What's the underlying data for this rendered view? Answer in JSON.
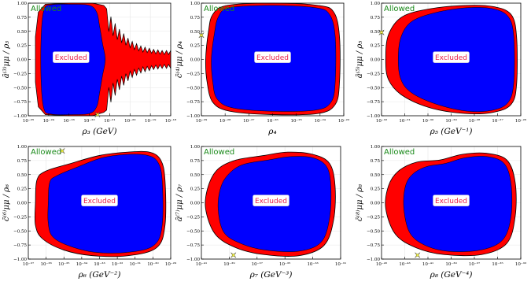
{
  "colors": {
    "excluded_inner": "#0000ff",
    "excluded_outer": "#ff0000",
    "marker": "#ffff33",
    "allowed_text": "#1a8a1a",
    "excluded_text": "#e8204a"
  },
  "region_labels": {
    "allowed": "Allowed",
    "excluded": "Excluded"
  },
  "chart_data": [
    {
      "type": "region",
      "xscale": "log",
      "xlabel": "ρ₃ (GeV)",
      "ylabel": "ȃ⁽³⁾μμ / ρ₃",
      "xlim_exp": [
        -25,
        -18
      ],
      "xtick_labels": [
        "10⁻²⁵",
        "10⁻²⁴",
        "10⁻²³",
        "10⁻²²",
        "10⁻²¹",
        "10⁻²⁰",
        "10⁻¹⁹",
        "10⁻¹⁸"
      ],
      "ylim": [
        -1.0,
        1.0
      ],
      "ytick_labels": [
        "1.00",
        "0.75",
        "0.50",
        "0.25",
        "0.00",
        "−0.25",
        "−0.50",
        "−0.75",
        "−1.00"
      ],
      "grid": true,
      "markers": [
        {
          "x_exp": -21.6,
          "y": -0.98
        }
      ]
    },
    {
      "type": "region",
      "xscale": "log",
      "xlabel": "ρ₄",
      "ylabel": "c̄⁽⁴⁾μμ / ρ₄",
      "xlim_exp": [
        -29,
        -23
      ],
      "xtick_labels": [
        "10⁻²⁹",
        "10⁻²⁸",
        "10⁻²⁷",
        "10⁻²⁶",
        "10⁻²⁵",
        "10⁻²⁴",
        "10⁻²³"
      ],
      "ylim": [
        -1.0,
        1.0
      ],
      "ytick_labels": [
        "1.00",
        "0.75",
        "0.50",
        "0.25",
        "0.00",
        "−0.25",
        "−0.50",
        "−0.75",
        "−1.00"
      ],
      "grid": true,
      "markers": [
        {
          "x_exp": -29.0,
          "y": 0.43
        }
      ]
    },
    {
      "type": "region",
      "xscale": "log",
      "xlabel": "ρ₅ (GeV⁻¹)",
      "ylabel": "ȃ⁽⁵⁾μμ / ρ₅",
      "xlim_exp": [
        -32,
        -26
      ],
      "xtick_labels": [
        "10⁻³²",
        "10⁻³¹",
        "10⁻³⁰",
        "10⁻²⁹",
        "10⁻²⁸",
        "10⁻²⁷",
        "10⁻²⁶"
      ],
      "ylim": [
        -1.0,
        1.0
      ],
      "ytick_labels": [
        "1.00",
        "0.75",
        "0.50",
        "0.25",
        "0.00",
        "−0.25",
        "−0.50",
        "−0.75",
        "−1.00"
      ],
      "grid": true,
      "markers": [
        {
          "x_exp": -32.0,
          "y": 0.48
        }
      ]
    },
    {
      "type": "region",
      "xscale": "log",
      "xlabel": "ρ₆ (GeV⁻²)",
      "ylabel": "c̄⁽⁶⁾μμ / ρ₆",
      "xlim_exp": [
        -37,
        -29
      ],
      "xtick_labels": [
        "10⁻³⁷",
        "10⁻³⁶",
        "10⁻³⁵",
        "10⁻³⁴",
        "10⁻³³",
        "10⁻³²",
        "10⁻³¹",
        "10⁻³⁰",
        "10⁻²⁹"
      ],
      "ylim": [
        -1.0,
        1.0
      ],
      "ytick_labels": [
        "1.00",
        "0.75",
        "0.50",
        "0.25",
        "0.00",
        "−0.25",
        "−0.50",
        "−0.75",
        "−1.00"
      ],
      "grid": true,
      "markers": [
        {
          "x_exp": -35.1,
          "y": 0.92
        }
      ]
    },
    {
      "type": "region",
      "xscale": "log",
      "xlabel": "ρ₇ (GeV⁻³)",
      "ylabel": "ȃ⁽⁷⁾μμ / ρ₇",
      "xlim_exp": [
        -41,
        -31
      ],
      "xtick_labels": [
        "10⁻⁴¹",
        "10⁻³⁹",
        "10⁻³⁷",
        "10⁻³⁵",
        "10⁻³³",
        "10⁻³¹"
      ],
      "ylim": [
        -1.0,
        1.0
      ],
      "ytick_labels": [
        "1.00",
        "0.75",
        "0.50",
        "0.25",
        "0.00",
        "−0.25",
        "−0.50",
        "−0.75",
        "−1.00"
      ],
      "grid": true,
      "markers": [
        {
          "x_exp": -38.7,
          "y": -0.93
        }
      ]
    },
    {
      "type": "region",
      "xscale": "log",
      "xlabel": "ρ₈ (GeV⁻⁴)",
      "ylabel": "c̄⁽⁸⁾μμ / ρ₈",
      "xlim_exp": [
        -45,
        -33
      ],
      "xtick_labels": [
        "10⁻⁴⁵",
        "10⁻⁴³",
        "10⁻⁴¹",
        "10⁻³⁹",
        "10⁻³⁷",
        "10⁻³⁵",
        "10⁻³³"
      ],
      "ylim": [
        -1.0,
        1.0
      ],
      "ytick_labels": [
        "1.00",
        "0.75",
        "0.50",
        "0.25",
        "0.00",
        "−0.25",
        "−0.50",
        "−0.75",
        "−1.00"
      ],
      "grid": true,
      "markers": [
        {
          "x_exp": -41.9,
          "y": -0.93
        }
      ]
    }
  ]
}
